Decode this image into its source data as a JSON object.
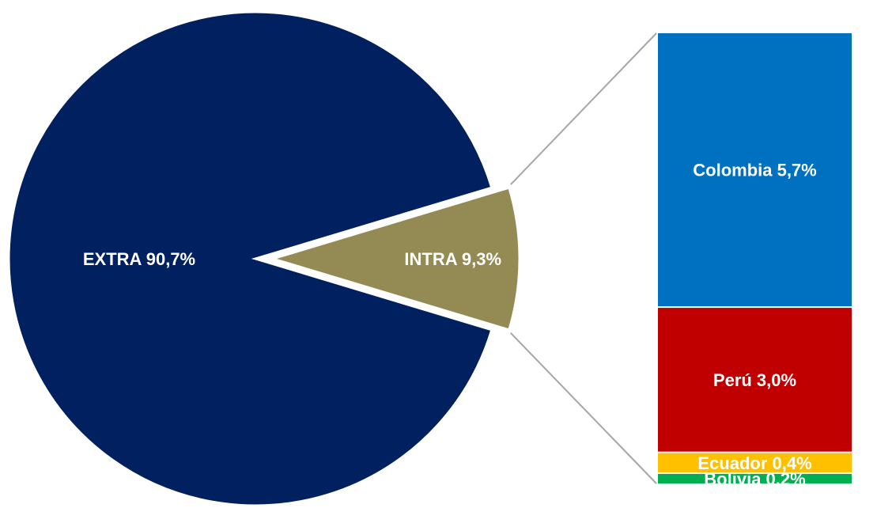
{
  "chart_data": {
    "type": "pie",
    "subtype": "bar-of-pie",
    "pie": {
      "slices": [
        {
          "key": "extra",
          "label": "EXTRA 90,7%",
          "value": 90.7,
          "color": "#002060",
          "exploded": false
        },
        {
          "key": "intra",
          "label": "INTRA 9,3%",
          "value": 9.3,
          "color": "#948A54",
          "exploded": true
        }
      ]
    },
    "breakdown": {
      "of": "intra",
      "segments": [
        {
          "key": "colombia",
          "label": "Colombia 5,7%",
          "value": 5.7,
          "color": "#0070C0"
        },
        {
          "key": "peru",
          "label": "Perú 3,0%",
          "value": 3.0,
          "color": "#C00000"
        },
        {
          "key": "ecuador",
          "label": "Ecuador 0,4%",
          "value": 0.4,
          "color": "#FFC000"
        },
        {
          "key": "bolivia",
          "label": "Bolivia 0,2%",
          "value": 0.2,
          "color": "#00B050"
        }
      ]
    },
    "connector_color": "#A6A6A6"
  }
}
